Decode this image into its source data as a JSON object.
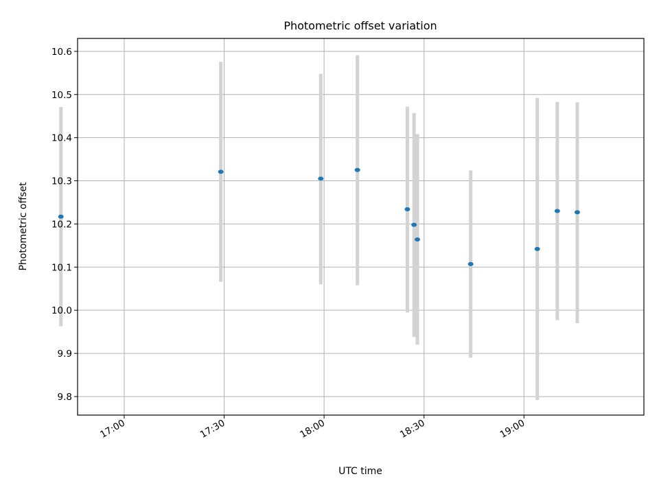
{
  "chart_data": {
    "type": "scatter",
    "title": "Photometric offset variation",
    "xlabel": "UTC time",
    "ylabel": "Photometric offset",
    "x_ticks": [
      "17:00",
      "17:30",
      "18:00",
      "18:30",
      "19:00"
    ],
    "y_ticks": [
      "9.8",
      "9.9",
      "10.0",
      "10.1",
      "10.2",
      "10.3",
      "10.4",
      "10.5",
      "10.6"
    ],
    "xlim": [
      "16:46",
      "19:36"
    ],
    "ylim": [
      9.757,
      10.63
    ],
    "grid": true,
    "series": [
      {
        "points": [
          {
            "t": "16:41",
            "y": 10.217,
            "y_low": 9.963,
            "y_high": 10.471
          },
          {
            "t": "17:29",
            "y": 10.321,
            "y_low": 10.066,
            "y_high": 10.576
          },
          {
            "t": "17:59",
            "y": 10.305,
            "y_low": 10.06,
            "y_high": 10.548
          },
          {
            "t": "18:10",
            "y": 10.325,
            "y_low": 10.058,
            "y_high": 10.591
          },
          {
            "t": "18:25",
            "y": 10.234,
            "y_low": 9.995,
            "y_high": 10.472
          },
          {
            "t": "18:27",
            "y": 10.198,
            "y_low": 9.938,
            "y_high": 10.457
          },
          {
            "t": "18:28",
            "y": 10.164,
            "y_low": 9.92,
            "y_high": 10.408
          },
          {
            "t": "18:44",
            "y": 10.107,
            "y_low": 9.89,
            "y_high": 10.324
          },
          {
            "t": "19:04",
            "y": 10.142,
            "y_low": 9.792,
            "y_high": 10.492
          },
          {
            "t": "19:10",
            "y": 10.23,
            "y_low": 9.977,
            "y_high": 10.483
          },
          {
            "t": "19:16",
            "y": 10.227,
            "y_low": 9.97,
            "y_high": 10.482
          }
        ]
      }
    ]
  }
}
